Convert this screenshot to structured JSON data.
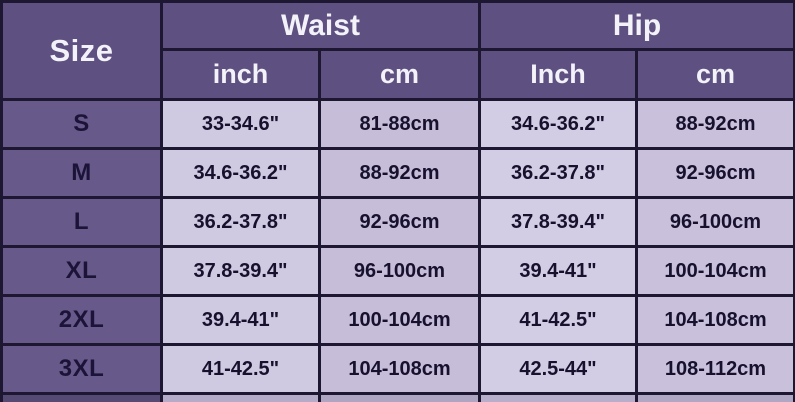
{
  "chart_data": {
    "type": "table",
    "columns": [
      "Size",
      "Waist inch",
      "Waist cm",
      "Hip Inch",
      "Hip cm"
    ],
    "header": {
      "size": "Size",
      "waist": "Waist",
      "hip": "Hip",
      "waist_inch": "inch",
      "waist_cm": "cm",
      "hip_inch": "Inch",
      "hip_cm": "cm"
    },
    "rows": [
      {
        "size": "S",
        "waist_inch": "33-34.6\"",
        "waist_cm": "81-88cm",
        "hip_inch": "34.6-36.2\"",
        "hip_cm": "88-92cm"
      },
      {
        "size": "M",
        "waist_inch": "34.6-36.2\"",
        "waist_cm": "88-92cm",
        "hip_inch": "36.2-37.8\"",
        "hip_cm": "92-96cm"
      },
      {
        "size": "L",
        "waist_inch": "36.2-37.8\"",
        "waist_cm": "92-96cm",
        "hip_inch": "37.8-39.4\"",
        "hip_cm": "96-100cm"
      },
      {
        "size": "XL",
        "waist_inch": "37.8-39.4\"",
        "waist_cm": "96-100cm",
        "hip_inch": "39.4-41\"",
        "hip_cm": "100-104cm"
      },
      {
        "size": "2XL",
        "waist_inch": "39.4-41\"",
        "waist_cm": "100-104cm",
        "hip_inch": "41-42.5\"",
        "hip_cm": "104-108cm"
      },
      {
        "size": "3XL",
        "waist_inch": "41-42.5\"",
        "waist_cm": "104-108cm",
        "hip_inch": "42.5-44\"",
        "hip_cm": "108-112cm"
      }
    ]
  },
  "colors": {
    "header_bg": "#5e5081",
    "size_column_bg": "#675989",
    "cell_light_bg": "#d0c9e2",
    "cell_alt_bg": "#c6bdd9",
    "grid_border": "#1d1731",
    "header_text": "#f4f2f9",
    "data_text": "#17112e"
  }
}
